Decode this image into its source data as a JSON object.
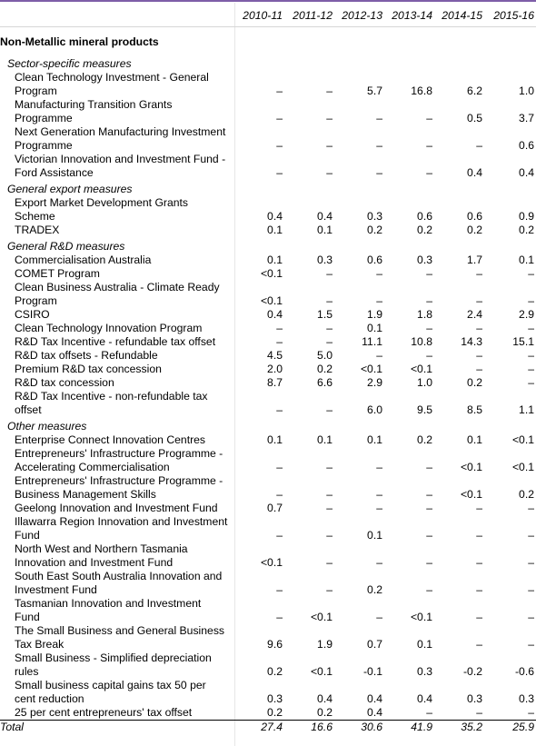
{
  "years": [
    "2010-11",
    "2011-12",
    "2012-13",
    "2013-14",
    "2014-15",
    "2015-16"
  ],
  "sector": "Non-Metallic mineral products",
  "groups": [
    {
      "name": "Sector-specific measures",
      "items": [
        {
          "label": "Clean Technology Investment - General Program",
          "values": [
            "–",
            "–",
            "5.7",
            "16.8",
            "6.2",
            "1.0"
          ]
        },
        {
          "label": "Manufacturing Transition Grants Programme",
          "values": [
            "–",
            "–",
            "–",
            "–",
            "0.5",
            "3.7"
          ]
        },
        {
          "label": "Next Generation Manufacturing Investment Programme",
          "values": [
            "–",
            "–",
            "–",
            "–",
            "–",
            "0.6"
          ]
        },
        {
          "label": "Victorian Innovation and Investment Fund - Ford Assistance",
          "values": [
            "–",
            "–",
            "–",
            "–",
            "0.4",
            "0.4"
          ]
        }
      ]
    },
    {
      "name": "General export measures",
      "items": [
        {
          "label": "Export Market Development Grants Scheme",
          "values": [
            "0.4",
            "0.4",
            "0.3",
            "0.6",
            "0.6",
            "0.9"
          ]
        },
        {
          "label": "TRADEX",
          "values": [
            "0.1",
            "0.1",
            "0.2",
            "0.2",
            "0.2",
            "0.2"
          ]
        }
      ]
    },
    {
      "name": "General R&D measures",
      "items": [
        {
          "label": "Commercialisation Australia",
          "values": [
            "0.1",
            "0.3",
            "0.6",
            "0.3",
            "1.7",
            "0.1"
          ]
        },
        {
          "label": "COMET Program",
          "values": [
            "<0.1",
            "–",
            "–",
            "–",
            "–",
            "–"
          ]
        },
        {
          "label": "Clean Business Australia - Climate Ready Program",
          "values": [
            "<0.1",
            "–",
            "–",
            "–",
            "–",
            "–"
          ]
        },
        {
          "label": "CSIRO",
          "values": [
            "0.4",
            "1.5",
            "1.9",
            "1.8",
            "2.4",
            "2.9"
          ]
        },
        {
          "label": "Clean Technology Innovation Program",
          "values": [
            "–",
            "–",
            "0.1",
            "–",
            "–",
            "–"
          ]
        },
        {
          "label": "R&D Tax Incentive - refundable tax offset",
          "values": [
            "–",
            "–",
            "11.1",
            "10.8",
            "14.3",
            "15.1"
          ]
        },
        {
          "label": "R&D tax offsets - Refundable",
          "values": [
            "4.5",
            "5.0",
            "–",
            "–",
            "–",
            "–"
          ]
        },
        {
          "label": "Premium R&D tax concession",
          "values": [
            "2.0",
            "0.2",
            "<0.1",
            "<0.1",
            "–",
            "–"
          ]
        },
        {
          "label": "R&D tax concession",
          "values": [
            "8.7",
            "6.6",
            "2.9",
            "1.0",
            "0.2",
            "–"
          ]
        },
        {
          "label": "R&D Tax Incentive - non-refundable tax offset",
          "values": [
            "–",
            "–",
            "6.0",
            "9.5",
            "8.5",
            "1.1"
          ]
        }
      ]
    },
    {
      "name": "Other measures",
      "items": [
        {
          "label": "Enterprise Connect Innovation Centres",
          "values": [
            "0.1",
            "0.1",
            "0.1",
            "0.2",
            "0.1",
            "<0.1"
          ]
        },
        {
          "label": "Entrepreneurs' Infrastructure Programme - Accelerating Commercialisation",
          "values": [
            "–",
            "–",
            "–",
            "–",
            "<0.1",
            "<0.1"
          ]
        },
        {
          "label": "Entrepreneurs' Infrastructure Programme - Business Management Skills",
          "values": [
            "–",
            "–",
            "–",
            "–",
            "<0.1",
            "0.2"
          ]
        },
        {
          "label": "Geelong Innovation and Investment Fund",
          "values": [
            "0.7",
            "–",
            "–",
            "–",
            "–",
            "–"
          ]
        },
        {
          "label": "Illawarra Region Innovation and Investment Fund",
          "values": [
            "–",
            "–",
            "0.1",
            "–",
            "–",
            "–"
          ]
        },
        {
          "label": "North West and Northern Tasmania Innovation and Investment Fund",
          "values": [
            "<0.1",
            "–",
            "–",
            "–",
            "–",
            "–"
          ]
        },
        {
          "label": "South East South Australia Innovation and Investment Fund",
          "values": [
            "–",
            "–",
            "0.2",
            "–",
            "–",
            "–"
          ]
        },
        {
          "label": "Tasmanian Innovation and Investment Fund",
          "values": [
            "–",
            "<0.1",
            "–",
            "<0.1",
            "–",
            "–"
          ]
        },
        {
          "label": "The Small Business and General Business Tax Break",
          "values": [
            "9.6",
            "1.9",
            "0.7",
            "0.1",
            "–",
            "–"
          ]
        },
        {
          "label": "Small Business - Simplified depreciation rules",
          "values": [
            "0.2",
            "<0.1",
            "-0.1",
            "0.3",
            "-0.2",
            "-0.6"
          ]
        },
        {
          "label": "Small business capital gains tax 50 per cent reduction",
          "values": [
            "0.3",
            "0.4",
            "0.4",
            "0.4",
            "0.3",
            "0.3"
          ]
        },
        {
          "label": "25 per cent entrepreneurs' tax offset",
          "values": [
            "0.2",
            "0.2",
            "0.4",
            "–",
            "–",
            "–"
          ]
        }
      ]
    }
  ],
  "total": {
    "label": "Total",
    "values": [
      "27.4",
      "16.6",
      "30.6",
      "41.9",
      "35.2",
      "25.9"
    ]
  }
}
